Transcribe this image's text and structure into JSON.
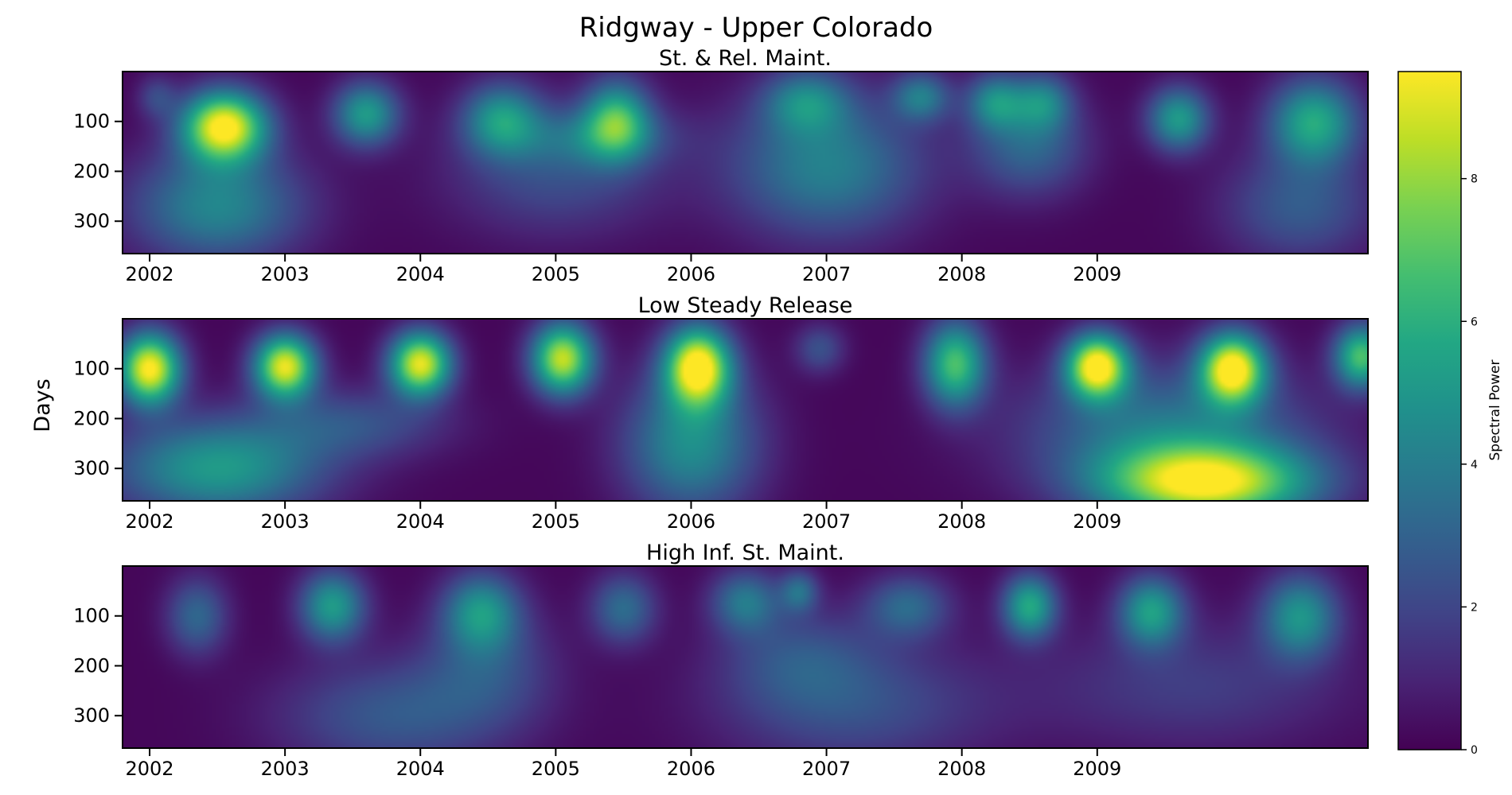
{
  "chart_data": {
    "type": "heatmap",
    "title": "Ridgway - Upper Colorado",
    "ylabel": "Days",
    "colorbar": {
      "label": "Spectral Power",
      "min": 0,
      "max": 9.5,
      "ticks": [
        0,
        2,
        4,
        6,
        8
      ],
      "colormap": "viridis"
    },
    "xlim": [
      2001.8,
      2011.0
    ],
    "ylim": [
      0,
      365
    ],
    "y_inverted": true,
    "x_ticks": [
      2002,
      2003,
      2004,
      2005,
      2006,
      2007,
      2008,
      2009
    ],
    "y_ticks": [
      100,
      200,
      300
    ],
    "panels": [
      {
        "subtitle": "St. & Rel. Maint.",
        "blobs": [
          {
            "x": 2002.55,
            "y": 110,
            "power": 9.5,
            "sx": 0.22,
            "sy": 50
          },
          {
            "x": 2003.6,
            "y": 85,
            "power": 5.0,
            "sx": 0.17,
            "sy": 45
          },
          {
            "x": 2004.6,
            "y": 95,
            "power": 4.5,
            "sx": 0.2,
            "sy": 50
          },
          {
            "x": 2005.45,
            "y": 95,
            "power": 5.5,
            "sx": 0.17,
            "sy": 55
          },
          {
            "x": 2006.85,
            "y": 60,
            "power": 3.5,
            "sx": 0.22,
            "sy": 45
          },
          {
            "x": 2007.7,
            "y": 50,
            "power": 3.5,
            "sx": 0.15,
            "sy": 35
          },
          {
            "x": 2008.25,
            "y": 60,
            "power": 4.0,
            "sx": 0.15,
            "sy": 40
          },
          {
            "x": 2008.6,
            "y": 60,
            "power": 3.5,
            "sx": 0.15,
            "sy": 40
          },
          {
            "x": 2009.6,
            "y": 95,
            "power": 5.0,
            "sx": 0.16,
            "sy": 45
          },
          {
            "x": 2010.6,
            "y": 100,
            "power": 5.5,
            "sx": 0.23,
            "sy": 60
          },
          {
            "x": 2002.5,
            "y": 270,
            "power": 4.2,
            "sx": 0.45,
            "sy": 80
          },
          {
            "x": 2007.0,
            "y": 190,
            "power": 4.0,
            "sx": 0.5,
            "sy": 100
          },
          {
            "x": 2008.5,
            "y": 150,
            "power": 3.0,
            "sx": 0.3,
            "sy": 70
          },
          {
            "x": 2005.0,
            "y": 200,
            "power": 2.2,
            "sx": 0.55,
            "sy": 90
          },
          {
            "x": 2010.5,
            "y": 270,
            "power": 2.6,
            "sx": 0.4,
            "sy": 80
          },
          {
            "x": 2005.3,
            "y": 130,
            "power": 2.0,
            "sx": 0.4,
            "sy": 40
          },
          {
            "x": 2002.05,
            "y": 50,
            "power": 1.8,
            "sx": 0.1,
            "sy": 30
          }
        ]
      },
      {
        "subtitle": "Low Steady Release",
        "blobs": [
          {
            "x": 2002.0,
            "y": 100,
            "power": 9.5,
            "sx": 0.16,
            "sy": 50
          },
          {
            "x": 2003.0,
            "y": 95,
            "power": 9.0,
            "sx": 0.16,
            "sy": 45
          },
          {
            "x": 2004.0,
            "y": 90,
            "power": 9.0,
            "sx": 0.16,
            "sy": 45
          },
          {
            "x": 2005.05,
            "y": 80,
            "power": 8.5,
            "sx": 0.16,
            "sy": 50
          },
          {
            "x": 2006.05,
            "y": 95,
            "power": 9.5,
            "sx": 0.17,
            "sy": 55
          },
          {
            "x": 2006.95,
            "y": 60,
            "power": 2.2,
            "sx": 0.13,
            "sy": 35
          },
          {
            "x": 2007.95,
            "y": 90,
            "power": 6.5,
            "sx": 0.16,
            "sy": 60
          },
          {
            "x": 2009.0,
            "y": 95,
            "power": 9.5,
            "sx": 0.16,
            "sy": 45
          },
          {
            "x": 2010.0,
            "y": 100,
            "power": 9.5,
            "sx": 0.17,
            "sy": 50
          },
          {
            "x": 2010.95,
            "y": 75,
            "power": 6.5,
            "sx": 0.14,
            "sy": 45
          },
          {
            "x": 2002.5,
            "y": 300,
            "power": 5.0,
            "sx": 0.55,
            "sy": 70
          },
          {
            "x": 2006.0,
            "y": 250,
            "power": 4.5,
            "sx": 0.35,
            "sy": 100
          },
          {
            "x": 2009.8,
            "y": 330,
            "power": 8.8,
            "sx": 0.55,
            "sy": 55
          },
          {
            "x": 2009.5,
            "y": 220,
            "power": 3.5,
            "sx": 0.75,
            "sy": 90
          },
          {
            "x": 2003.5,
            "y": 210,
            "power": 2.2,
            "sx": 0.5,
            "sy": 50
          }
        ]
      },
      {
        "subtitle": "High Inf. St. Maint.",
        "blobs": [
          {
            "x": 2002.35,
            "y": 100,
            "power": 3.0,
            "sx": 0.16,
            "sy": 55
          },
          {
            "x": 2003.35,
            "y": 80,
            "power": 5.0,
            "sx": 0.17,
            "sy": 50
          },
          {
            "x": 2004.45,
            "y": 90,
            "power": 4.5,
            "sx": 0.2,
            "sy": 55
          },
          {
            "x": 2005.5,
            "y": 85,
            "power": 3.2,
            "sx": 0.17,
            "sy": 50
          },
          {
            "x": 2006.4,
            "y": 70,
            "power": 3.5,
            "sx": 0.18,
            "sy": 45
          },
          {
            "x": 2006.8,
            "y": 50,
            "power": 3.0,
            "sx": 0.1,
            "sy": 30
          },
          {
            "x": 2007.6,
            "y": 80,
            "power": 3.0,
            "sx": 0.22,
            "sy": 45
          },
          {
            "x": 2008.5,
            "y": 80,
            "power": 5.5,
            "sx": 0.14,
            "sy": 45
          },
          {
            "x": 2009.4,
            "y": 90,
            "power": 5.0,
            "sx": 0.17,
            "sy": 50
          },
          {
            "x": 2010.5,
            "y": 100,
            "power": 4.6,
            "sx": 0.2,
            "sy": 60
          },
          {
            "x": 2003.8,
            "y": 300,
            "power": 2.5,
            "sx": 0.6,
            "sy": 80
          },
          {
            "x": 2007.2,
            "y": 280,
            "power": 2.2,
            "sx": 0.7,
            "sy": 90
          },
          {
            "x": 2006.8,
            "y": 180,
            "power": 1.8,
            "sx": 0.4,
            "sy": 70
          },
          {
            "x": 2009.7,
            "y": 240,
            "power": 1.6,
            "sx": 0.8,
            "sy": 90
          },
          {
            "x": 2004.5,
            "y": 200,
            "power": 2.0,
            "sx": 0.35,
            "sy": 80
          }
        ]
      }
    ]
  }
}
